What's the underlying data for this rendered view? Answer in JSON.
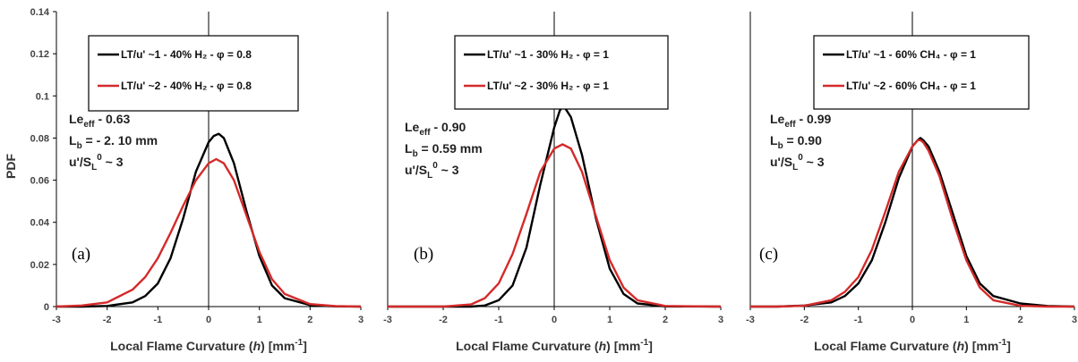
{
  "colors": {
    "black_series": "#000000",
    "red_series": "#d42a2a",
    "axes": "#000000"
  },
  "chart_data": [
    {
      "type": "line",
      "panel_label": "(a)",
      "xlabel": "Local Flame Curvature (h) [mm-1]",
      "xlabel_parts": [
        "Local Flame Curvature (",
        "h",
        ") [mm",
        "-1",
        "]"
      ],
      "ylabel": "PDF",
      "xlim": [
        -3,
        3
      ],
      "ylim": [
        0,
        0.14
      ],
      "xticks": [
        "-3",
        "-2",
        "-1",
        "0",
        "1",
        "2",
        "3"
      ],
      "yticks": [
        "0",
        "0.02",
        "0.04",
        "0.06",
        "0.08",
        "0.1",
        "0.12",
        "0.14"
      ],
      "show_yticks": true,
      "legend": [
        {
          "text": "LT/u' ~1 - 40% H₂ - φ = 0.8",
          "color": "#000000"
        },
        {
          "text": "LT/u' ~2 - 40% H₂ - φ = 0.8",
          "color": "#d42a2a"
        }
      ],
      "annotations": [
        {
          "main": "Le",
          "sub": "eff",
          "rest": " - 0.63"
        },
        {
          "main": "L",
          "sub": "b",
          "rest": " = - 2. 10 mm"
        },
        {
          "main": "u'/S",
          "sub": "L",
          "sup": "0",
          "rest": " ~ 3"
        }
      ],
      "series": [
        {
          "name": "LT/u' ~1 - 40% H₂ - φ = 0.8",
          "color": "#000000",
          "x": [
            -3,
            -2.5,
            -2,
            -1.5,
            -1.25,
            -1,
            -0.75,
            -0.5,
            -0.25,
            0,
            0.1,
            0.2,
            0.3,
            0.5,
            0.75,
            1,
            1.25,
            1.5,
            2,
            2.5,
            3
          ],
          "y": [
            0,
            0,
            0.0003,
            0.002,
            0.005,
            0.011,
            0.023,
            0.042,
            0.064,
            0.078,
            0.081,
            0.082,
            0.08,
            0.068,
            0.045,
            0.024,
            0.01,
            0.004,
            0.0007,
            0.0001,
            0
          ]
        },
        {
          "name": "LT/u' ~2 - 40% H₂ - φ = 0.8",
          "color": "#d42a2a",
          "x": [
            -3,
            -2.5,
            -2,
            -1.5,
            -1.25,
            -1,
            -0.75,
            -0.5,
            -0.25,
            0,
            0.15,
            0.3,
            0.5,
            0.75,
            1,
            1.25,
            1.5,
            2,
            2.5,
            3
          ],
          "y": [
            0,
            0.0005,
            0.002,
            0.008,
            0.014,
            0.023,
            0.035,
            0.048,
            0.06,
            0.068,
            0.07,
            0.068,
            0.06,
            0.043,
            0.026,
            0.013,
            0.006,
            0.0012,
            0.0002,
            0
          ]
        }
      ]
    },
    {
      "type": "line",
      "panel_label": "(b)",
      "xlabel": "Local Flame Curvature (h) [mm-1]",
      "xlabel_parts": [
        "Local Flame Curvature (",
        "h",
        ") [mm",
        "-1",
        "]"
      ],
      "ylabel": "",
      "xlim": [
        -3,
        3
      ],
      "ylim": [
        0,
        0.14
      ],
      "xticks": [
        "-3",
        "-2",
        "-1",
        "0",
        "1",
        "2",
        "3"
      ],
      "yticks": [],
      "show_yticks": false,
      "legend": [
        {
          "text": "LT/u' ~1 - 30% H₂ - φ = 1",
          "color": "#000000"
        },
        {
          "text": "LT/u' ~2 - 30% H₂ - φ = 1",
          "color": "#d42a2a"
        }
      ],
      "annotations": [
        {
          "main": "Le",
          "sub": "eff",
          "rest": " - 0.90"
        },
        {
          "main": "L",
          "sub": "b",
          "rest": " = 0.59 mm"
        },
        {
          "main": "u'/S",
          "sub": "L",
          "sup": "0",
          "rest": " ~ 3"
        }
      ],
      "series": [
        {
          "name": "LT/u' ~1 - 30% H₂ - φ = 1",
          "color": "#000000",
          "x": [
            -3,
            -1.5,
            -1.25,
            -1,
            -0.75,
            -0.5,
            -0.25,
            0,
            0.1,
            0.15,
            0.2,
            0.3,
            0.5,
            0.75,
            1,
            1.25,
            1.5,
            2,
            3
          ],
          "y": [
            0,
            0,
            0.0005,
            0.003,
            0.01,
            0.028,
            0.058,
            0.085,
            0.093,
            0.095,
            0.094,
            0.09,
            0.072,
            0.042,
            0.018,
            0.006,
            0.0015,
            0.0001,
            0
          ]
        },
        {
          "name": "LT/u' ~2 - 30% H₂ - φ = 1",
          "color": "#d42a2a",
          "x": [
            -3,
            -2,
            -1.5,
            -1.25,
            -1,
            -0.75,
            -0.5,
            -0.25,
            0,
            0.15,
            0.3,
            0.5,
            0.75,
            1,
            1.25,
            1.5,
            2,
            3
          ],
          "y": [
            0,
            0,
            0.001,
            0.004,
            0.011,
            0.025,
            0.044,
            0.064,
            0.075,
            0.077,
            0.075,
            0.064,
            0.043,
            0.022,
            0.009,
            0.003,
            0.0003,
            0
          ]
        }
      ]
    },
    {
      "type": "line",
      "panel_label": "(c)",
      "xlabel": "Local Flame Curvature (h) [mm-1]",
      "xlabel_parts": [
        "Local Flame Curvature (",
        "h",
        ") [mm",
        "-1",
        "]"
      ],
      "ylabel": "",
      "xlim": [
        -3,
        3
      ],
      "ylim": [
        0,
        0.14
      ],
      "xticks": [
        "-3",
        "-2",
        "-1",
        "0",
        "1",
        "2",
        "3"
      ],
      "yticks": [],
      "show_yticks": false,
      "legend": [
        {
          "text": "LT/u' ~1 - 60% CH₄ - φ = 1",
          "color": "#000000"
        },
        {
          "text": "LT/u' ~2 - 60% CH₄ - φ = 1",
          "color": "#d42a2a"
        }
      ],
      "annotations": [
        {
          "main": "Le",
          "sub": "eff",
          "rest": " - 0.99"
        },
        {
          "main": "L",
          "sub": "b",
          "rest": " = 0.90"
        },
        {
          "main": "u'/S",
          "sub": "L",
          "sup": "0",
          "rest": " ~ 3"
        }
      ],
      "series": [
        {
          "name": "LT/u' ~1 - 60% CH₄ - φ = 1",
          "color": "#000000",
          "x": [
            -3,
            -2.5,
            -2,
            -1.5,
            -1.25,
            -1,
            -0.75,
            -0.5,
            -0.25,
            0,
            0.1,
            0.15,
            0.2,
            0.3,
            0.5,
            0.75,
            1,
            1.25,
            1.5,
            2,
            2.5,
            3
          ],
          "y": [
            0,
            0,
            0.0005,
            0.002,
            0.005,
            0.011,
            0.022,
            0.04,
            0.061,
            0.076,
            0.079,
            0.08,
            0.079,
            0.076,
            0.064,
            0.044,
            0.024,
            0.011,
            0.005,
            0.0015,
            0.0003,
            0
          ]
        },
        {
          "name": "LT/u' ~2 - 60% CH₄ - φ = 1",
          "color": "#d42a2a",
          "x": [
            -3,
            -2.5,
            -2,
            -1.5,
            -1.25,
            -1,
            -0.75,
            -0.5,
            -0.25,
            0,
            0.1,
            0.15,
            0.2,
            0.3,
            0.5,
            0.75,
            1,
            1.25,
            1.5,
            2,
            2.5,
            3
          ],
          "y": [
            0,
            0,
            0.0004,
            0.003,
            0.007,
            0.014,
            0.027,
            0.045,
            0.064,
            0.076,
            0.079,
            0.079,
            0.078,
            0.074,
            0.062,
            0.041,
            0.022,
            0.009,
            0.003,
            0.0004,
            0,
            0
          ]
        }
      ]
    }
  ]
}
